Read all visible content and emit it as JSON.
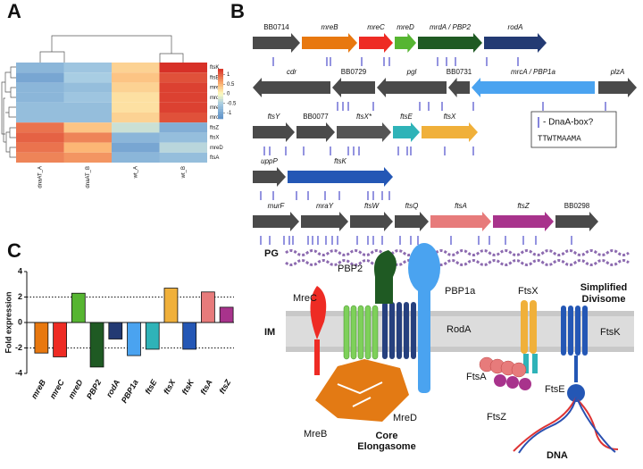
{
  "panel_labels": [
    "A",
    "B",
    "C"
  ],
  "heatmap": {
    "rows": [
      "ftsK",
      "ftsE",
      "mreC",
      "mrdA",
      "mreB",
      "mrcA",
      "ftsZ",
      "ftsX",
      "mreD",
      "ftsA"
    ],
    "columns": [
      "dnaAT_A",
      "dnaAT_B",
      "wt_A",
      "wt_B"
    ],
    "values": [
      [
        -0.8,
        -0.6,
        0.3,
        1.3
      ],
      [
        -1.0,
        -0.5,
        0.4,
        1.1
      ],
      [
        -0.8,
        -0.7,
        0.3,
        1.2
      ],
      [
        -0.8,
        -0.6,
        0.2,
        1.2
      ],
      [
        -0.7,
        -0.7,
        0.2,
        1.2
      ],
      [
        -0.7,
        -0.7,
        0.3,
        1.1
      ],
      [
        0.9,
        0.4,
        -0.3,
        -0.9
      ],
      [
        1.0,
        0.8,
        -0.8,
        -0.7
      ],
      [
        0.9,
        0.5,
        -1.0,
        -0.4
      ],
      [
        0.8,
        0.7,
        -0.8,
        -0.7
      ]
    ],
    "colorbar_lim": [
      -1.3,
      1.3
    ],
    "colorbar_ticks": [
      1,
      0.5,
      0,
      -0.5,
      -1
    ]
  },
  "gene_map": {
    "rows": [
      [
        {
          "name": "BB0714",
          "color": "#4a4a4a",
          "italic": false,
          "dir": "right"
        },
        {
          "name": "mreB",
          "color": "#e8780f",
          "italic": true,
          "dir": "right"
        },
        {
          "name": "mreC",
          "color": "#ee2b24",
          "italic": true,
          "dir": "right"
        },
        {
          "name": "mreD",
          "color": "#56b531",
          "italic": true,
          "dir": "right"
        },
        {
          "name": "mrdA / PBP2",
          "color": "#1f5a23",
          "italic": true,
          "dir": "right"
        },
        {
          "name": "rodA",
          "color": "#233a73",
          "italic": true,
          "dir": "right"
        }
      ],
      [
        {
          "name": "cdr",
          "color": "#4a4a4a",
          "italic": true,
          "dir": "left"
        },
        {
          "name": "BB0729",
          "color": "#4a4a4a",
          "italic": false,
          "dir": "left"
        },
        {
          "name": "pgl",
          "color": "#4a4a4a",
          "italic": true,
          "dir": "left"
        },
        {
          "name": "BB0731",
          "color": "#4a4a4a",
          "italic": false,
          "dir": "left"
        },
        {
          "name": "mrcA / PBP1a",
          "color": "#4aa3f0",
          "italic": true,
          "dir": "left"
        },
        {
          "name": "plzA",
          "color": "#4a4a4a",
          "italic": true,
          "dir": "right"
        }
      ],
      [
        {
          "name": "ftsY",
          "color": "#4a4a4a",
          "italic": true,
          "dir": "right"
        },
        {
          "name": "BB0077",
          "color": "#4a4a4a",
          "italic": false,
          "dir": "right"
        },
        {
          "name": "ftsX*",
          "color": "#555555",
          "italic": true,
          "dir": "right"
        },
        {
          "name": "ftsE",
          "color": "#2fb3b8",
          "italic": true,
          "dir": "right"
        },
        {
          "name": "ftsX",
          "color": "#f0b03a",
          "italic": true,
          "dir": "right"
        }
      ],
      [
        {
          "name": "uppP",
          "color": "#4a4a4a",
          "italic": true,
          "dir": "right"
        },
        {
          "name": "ftsK",
          "color": "#2457b5",
          "italic": true,
          "dir": "right"
        }
      ],
      [
        {
          "name": "murF",
          "color": "#4a4a4a",
          "italic": true,
          "dir": "right"
        },
        {
          "name": "mraY",
          "color": "#4a4a4a",
          "italic": true,
          "dir": "right"
        },
        {
          "name": "ftsW",
          "color": "#4a4a4a",
          "italic": true,
          "dir": "right"
        },
        {
          "name": "ftsQ",
          "color": "#4a4a4a",
          "italic": true,
          "dir": "right"
        },
        {
          "name": "ftsA",
          "color": "#e77b7b",
          "italic": true,
          "dir": "right"
        },
        {
          "name": "ftsZ",
          "color": "#a8338c",
          "italic": true,
          "dir": "right"
        },
        {
          "name": "BB0298",
          "color": "#4a4a4a",
          "italic": false,
          "dir": "right"
        }
      ]
    ],
    "legend": {
      "text": "- DnaA-box?",
      "motif": "TTWTMAAMA"
    }
  },
  "chart_data": {
    "type": "bar",
    "y_label": "Fold expression",
    "categories": [
      "mreB",
      "mreC",
      "mreD",
      "PBP2",
      "rodA",
      "PBP1a",
      "ftsE",
      "ftsX",
      "ftsK",
      "ftsA",
      "ftsZ"
    ],
    "values": [
      -2.4,
      -2.7,
      2.3,
      -3.5,
      -1.3,
      -2.6,
      -2.1,
      2.7,
      -2.1,
      2.4,
      1.2
    ],
    "colors": [
      "#e8780f",
      "#ee2b24",
      "#56b531",
      "#1f5a23",
      "#233a73",
      "#4aa3f0",
      "#2fb3b8",
      "#f0b03a",
      "#2457b5",
      "#e77b7b",
      "#a8338c"
    ],
    "ylim": [
      -4,
      4
    ],
    "yticks": [
      -4,
      -2,
      0,
      2,
      4
    ],
    "dotted_lines": [
      -2,
      2
    ]
  },
  "diagram": {
    "pg": "PG",
    "im": "IM",
    "pbp2": "PBP2",
    "mrec": "MreC",
    "pbp1a": "PBP1a",
    "roda": "RodA",
    "mreb": "MreB",
    "mred": "MreD",
    "elongasome": [
      "Core",
      "Elongasome"
    ],
    "divisome": [
      "Simplified",
      "Divisome"
    ],
    "ftsx": "FtsX",
    "ftsk": "FtsK",
    "ftsa": "FtsA",
    "ftse": "FtsE",
    "ftsz": "FtsZ",
    "dna": "DNA"
  }
}
